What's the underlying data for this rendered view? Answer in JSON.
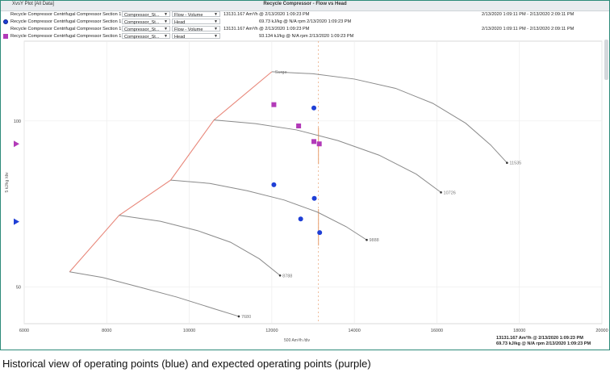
{
  "window": {
    "tab_label": "XvsY Plot [All Data]",
    "title": "Recycle Compressor - Flow vs Head"
  },
  "rows": [
    {
      "marker": "",
      "source": "Recycle Compressor Centrifugal Compressor Section 1",
      "sel1": "Compressor_St...",
      "sel2": "Flow - Volume",
      "value": "13131.167 Am³/h @ 2/13/2020 1:09:23 PM",
      "range": "2/13/2020 1:09:11 PM - 2/13/2020 2:09:11 PM"
    },
    {
      "marker": "circle",
      "source": "Recycle Compressor Centrifugal Compressor Section 1",
      "sel1": "Compressor_St...",
      "sel2": "Head",
      "value": "69.73 kJ/kg @ N/A rpm 2/13/2020 1:09:23 PM",
      "range": ""
    },
    {
      "marker": "",
      "source": "Recycle Compressor Centrifugal Compressor Section 1",
      "sel1": "Compressor_St...",
      "sel2": "Flow - Volume",
      "value": "13131.167 Am³/h @ 2/13/2020 1:09:23 PM",
      "range": "2/13/2020 1:09:11 PM - 2/13/2020 2:09:11 PM"
    },
    {
      "marker": "square",
      "source": "Recycle Compressor Centrifugal Compressor Section 1",
      "sel1": "Compressor_St...",
      "sel2": "Head",
      "value": "93.134 kJ/kg @ N/A rpm 2/13/2020 1:09:23 PM",
      "range": ""
    }
  ],
  "footer": {
    "line1": "13131.167 Am³/h @ 2/13/2020 1:09:23 PM",
    "line2": "69.73 kJ/kg @ N/A rpm 2/13/2020 1:09:23 PM"
  },
  "caption": "Historical view of operating points (blue) and expected operating points (purple)",
  "colors": {
    "blue": "#1f3fd6",
    "purple": "#b23ab8",
    "surge": "#e8877a",
    "curve": "#8a8a8a",
    "cursor": "#e8a070"
  },
  "chart_data": {
    "type": "scatter",
    "xlabel": "500 Am³/h /div",
    "ylabel": "5 kJ/kg /div",
    "xlim": [
      6000,
      20000
    ],
    "ylim": [
      39,
      124
    ],
    "xticks": [
      6000,
      8000,
      10000,
      12000,
      14000,
      16000,
      18000,
      20000
    ],
    "yticks": [
      {
        "value": 50,
        "label": "50"
      },
      {
        "value": 100,
        "label": "100"
      }
    ],
    "grid": true,
    "surge_label": "Surge",
    "surge_line": {
      "x": [
        7100,
        8300,
        9550,
        10600,
        12000
      ],
      "y": [
        54.6,
        71.6,
        82.2,
        100.3,
        114.8
      ]
    },
    "speed_curves": [
      {
        "label": "7680",
        "x": [
          7100,
          7900,
          8800,
          9700,
          10600,
          11200
        ],
        "y": [
          54.6,
          52.9,
          50.0,
          47.0,
          43.5,
          41.2
        ]
      },
      {
        "label": "8788",
        "x": [
          8300,
          9300,
          10200,
          11000,
          11700,
          12200
        ],
        "y": [
          71.6,
          69.8,
          67.0,
          63.5,
          58.5,
          53.5
        ]
      },
      {
        "label": "9888",
        "x": [
          9550,
          10500,
          11400,
          12300,
          13100,
          13800,
          14300
        ],
        "y": [
          82.2,
          81.2,
          79.0,
          76.2,
          72.6,
          68.2,
          64.2
        ]
      },
      {
        "label": "10726",
        "x": [
          10600,
          11600,
          12600,
          13600,
          14600,
          15500,
          16100
        ],
        "y": [
          100.3,
          99.2,
          97.3,
          94.1,
          89.7,
          84.0,
          78.5
        ]
      },
      {
        "label": "11535",
        "x": [
          12000,
          13000,
          14000,
          15000,
          15900,
          16700,
          17300,
          17700
        ],
        "y": [
          114.8,
          114.2,
          112.6,
          109.8,
          105.3,
          99.3,
          92.8,
          87.4
        ]
      }
    ],
    "series": [
      {
        "name": "",
        "marker": "circle",
        "color": "#1f3fd6",
        "x": [
          13020,
          12050,
          12700,
          13030,
          13160
        ],
        "y": [
          103.9,
          80.8,
          70.5,
          76.7,
          66.4
        ]
      },
      {
        "name": "",
        "marker": "square",
        "color": "#b23ab8",
        "x": [
          12050,
          12650,
          13020,
          13150
        ],
        "y": [
          104.9,
          98.5,
          93.8,
          93.1
        ]
      }
    ],
    "axis_markers": [
      {
        "color": "#b23ab8",
        "y": 93.1
      },
      {
        "color": "#1f3fd6",
        "y": 69.7
      }
    ],
    "cursor_x": 13131
  }
}
